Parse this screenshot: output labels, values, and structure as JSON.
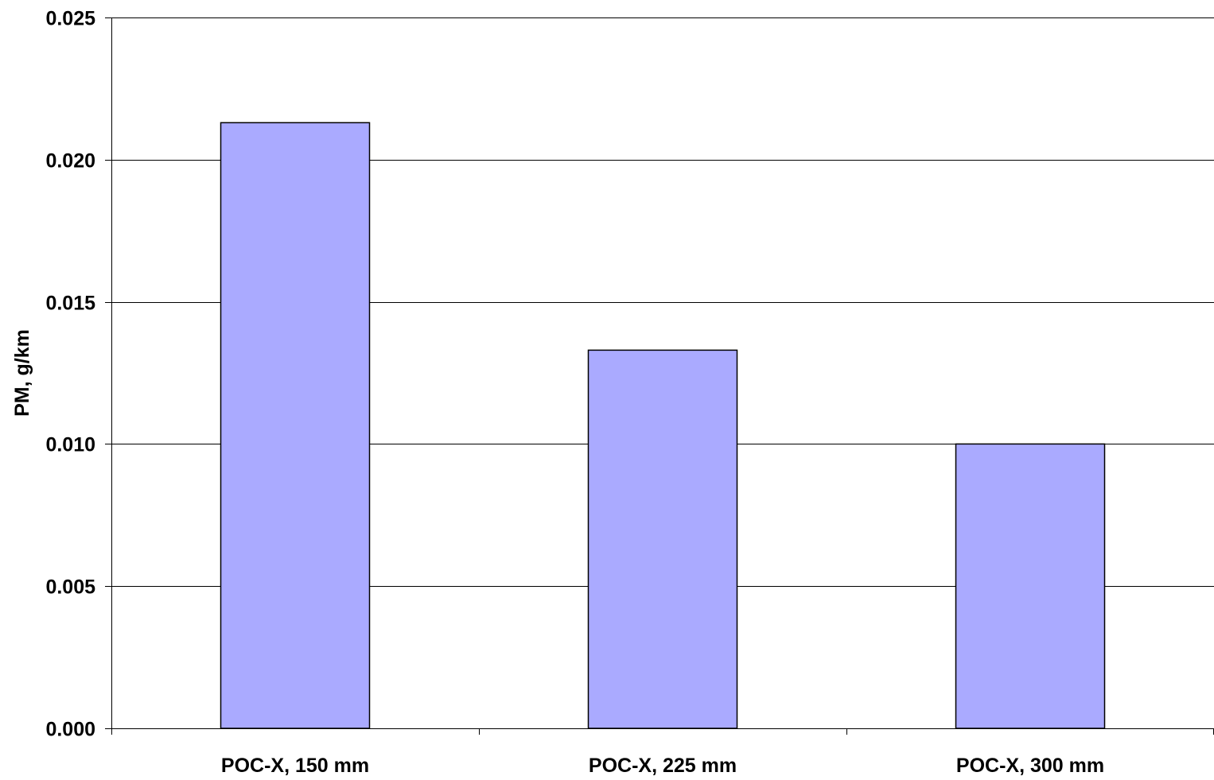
{
  "chart_data": {
    "type": "bar",
    "title": "",
    "xlabel": "",
    "ylabel": "PM, g/km",
    "categories": [
      "POC-X, 150 mm",
      "POC-X, 225 mm",
      "POC-X, 300 mm"
    ],
    "values": [
      0.0213,
      0.0133,
      0.01
    ],
    "ylim": [
      0,
      0.025
    ],
    "yticks": [
      0.0,
      0.005,
      0.01,
      0.015,
      0.02,
      0.025
    ],
    "ytick_labels": [
      "0.000",
      "0.005",
      "0.010",
      "0.015",
      "0.020",
      "0.025"
    ],
    "grid": "horizontal",
    "bar_color": "#aaaaff",
    "bar_border_color": "#000000",
    "legend": "none"
  }
}
